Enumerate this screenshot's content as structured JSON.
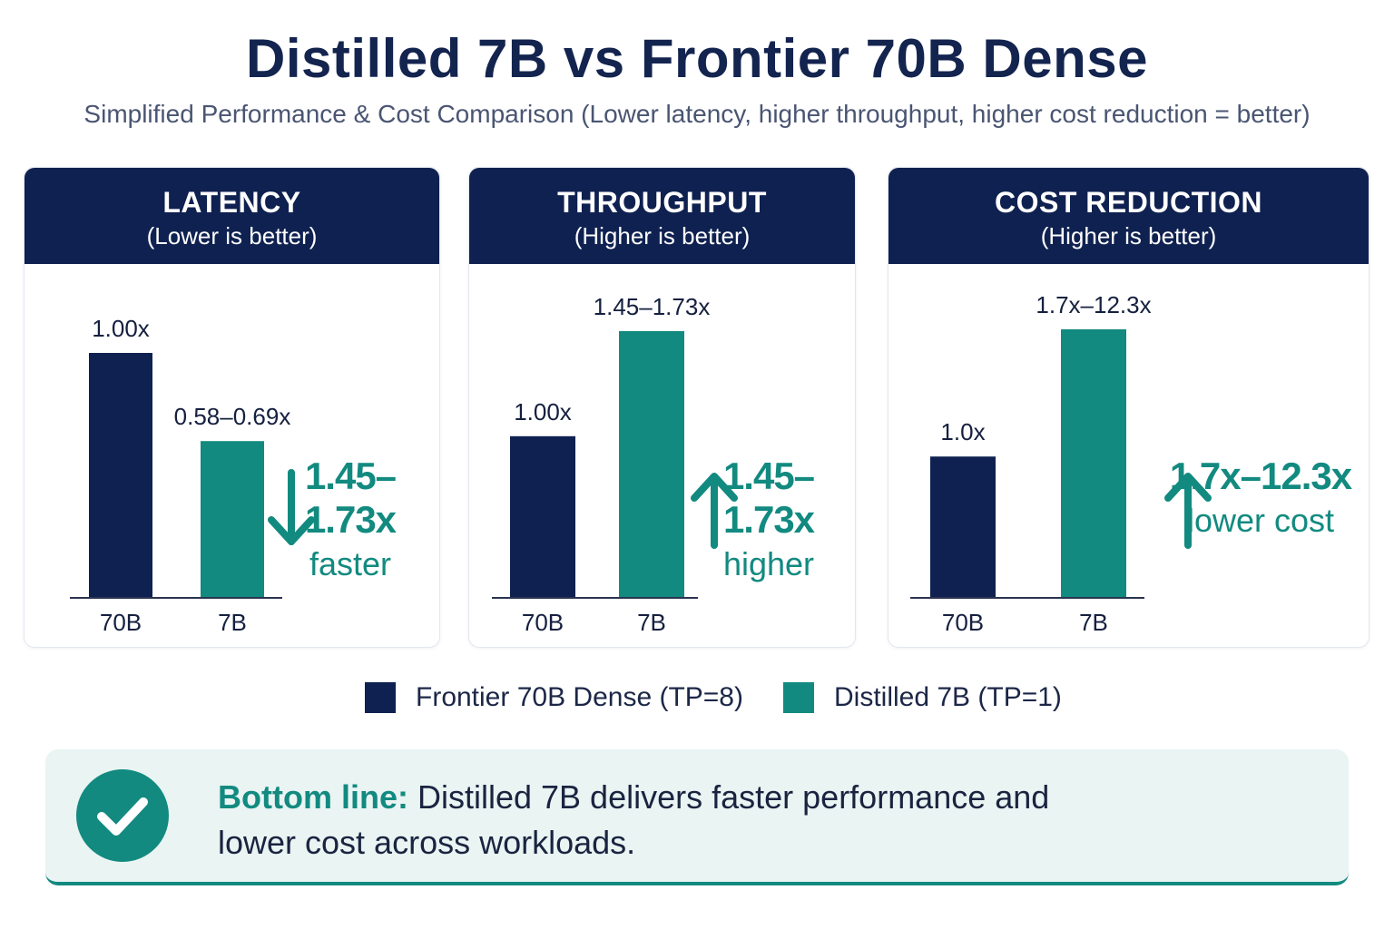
{
  "title": "Distilled 7B vs Frontier 70B Dense",
  "subtitle": "Simplified Performance & Cost Comparison (Lower latency, higher throughput, higher cost reduction = better)",
  "colors": {
    "frontier": "#0f2150",
    "distilled": "#128a80",
    "header": "#0f2150"
  },
  "chart_data": [
    {
      "type": "bar",
      "title": "LATENCY",
      "subtitle": "(Lower is better)",
      "categories": [
        "70B",
        "7B"
      ],
      "values": [
        1.0,
        0.64
      ],
      "value_labels": [
        "1.00x",
        "0.58–0.69x"
      ],
      "ylim": [
        0,
        1.0
      ],
      "callout": {
        "value": "1.45–1.73x",
        "text": "faster",
        "icon": "arrow-down-icon"
      }
    },
    {
      "type": "bar",
      "title": "THROUGHPUT",
      "subtitle": "(Higher is better)",
      "categories": [
        "70B",
        "7B"
      ],
      "values": [
        1.0,
        1.65
      ],
      "value_labels": [
        "1.00x",
        "1.45–1.73x"
      ],
      "ylim": [
        0,
        1.65
      ],
      "callout": {
        "value": "1.45–1.73x",
        "text": "higher",
        "icon": "arrow-up-icon"
      }
    },
    {
      "type": "bar",
      "title": "COST REDUCTION",
      "subtitle": "(Higher is better)",
      "categories": [
        "70B",
        "7B"
      ],
      "values": [
        1.0,
        1.9
      ],
      "value_labels": [
        "1.0x",
        "1.7x–12.3x"
      ],
      "ylim": [
        0,
        1.9
      ],
      "callout": {
        "value": "1.7x–12.3x",
        "text": "lower cost",
        "icon": "arrow-up-icon"
      }
    }
  ],
  "legend": [
    {
      "label": "Frontier 70B Dense (TP=8)",
      "color": "#0f2150"
    },
    {
      "label": "Distilled 7B (TP=1)",
      "color": "#128a80"
    }
  ],
  "bottom_line": {
    "label": "Bottom line:",
    "text": " Distilled 7B delivers faster performance and lower cost across workloads.",
    "icon": "check-icon"
  }
}
